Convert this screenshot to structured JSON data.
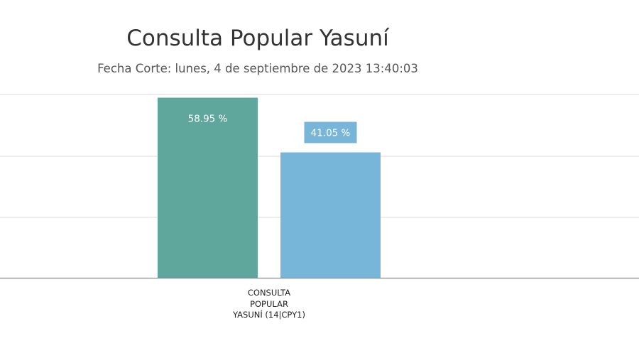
{
  "chart_data": {
    "type": "bar",
    "title": "Consulta Popular Yasuní",
    "subtitle": "Fecha Corte: lunes, 4 de septiembre de 2023 13:40:03",
    "categories": [
      "CONSULTA POPULAR YASUNÍ (14|CPY1)"
    ],
    "category_label_lines": [
      "CONSULTA",
      "POPULAR",
      "YASUNÍ (14|CPY1)"
    ],
    "series": [
      {
        "values": [
          58.95
        ],
        "data_label": "58.95 %",
        "color": "#5fa69c",
        "label_color": "#ffffff",
        "label_bg": "none"
      },
      {
        "values": [
          41.05
        ],
        "data_label": "41.05 %",
        "color": "#78b6d9",
        "label_color": "#ffffff",
        "label_bg": "#78b6d9"
      }
    ],
    "ylim": [
      0,
      60
    ],
    "grid": true,
    "legend": "none"
  }
}
